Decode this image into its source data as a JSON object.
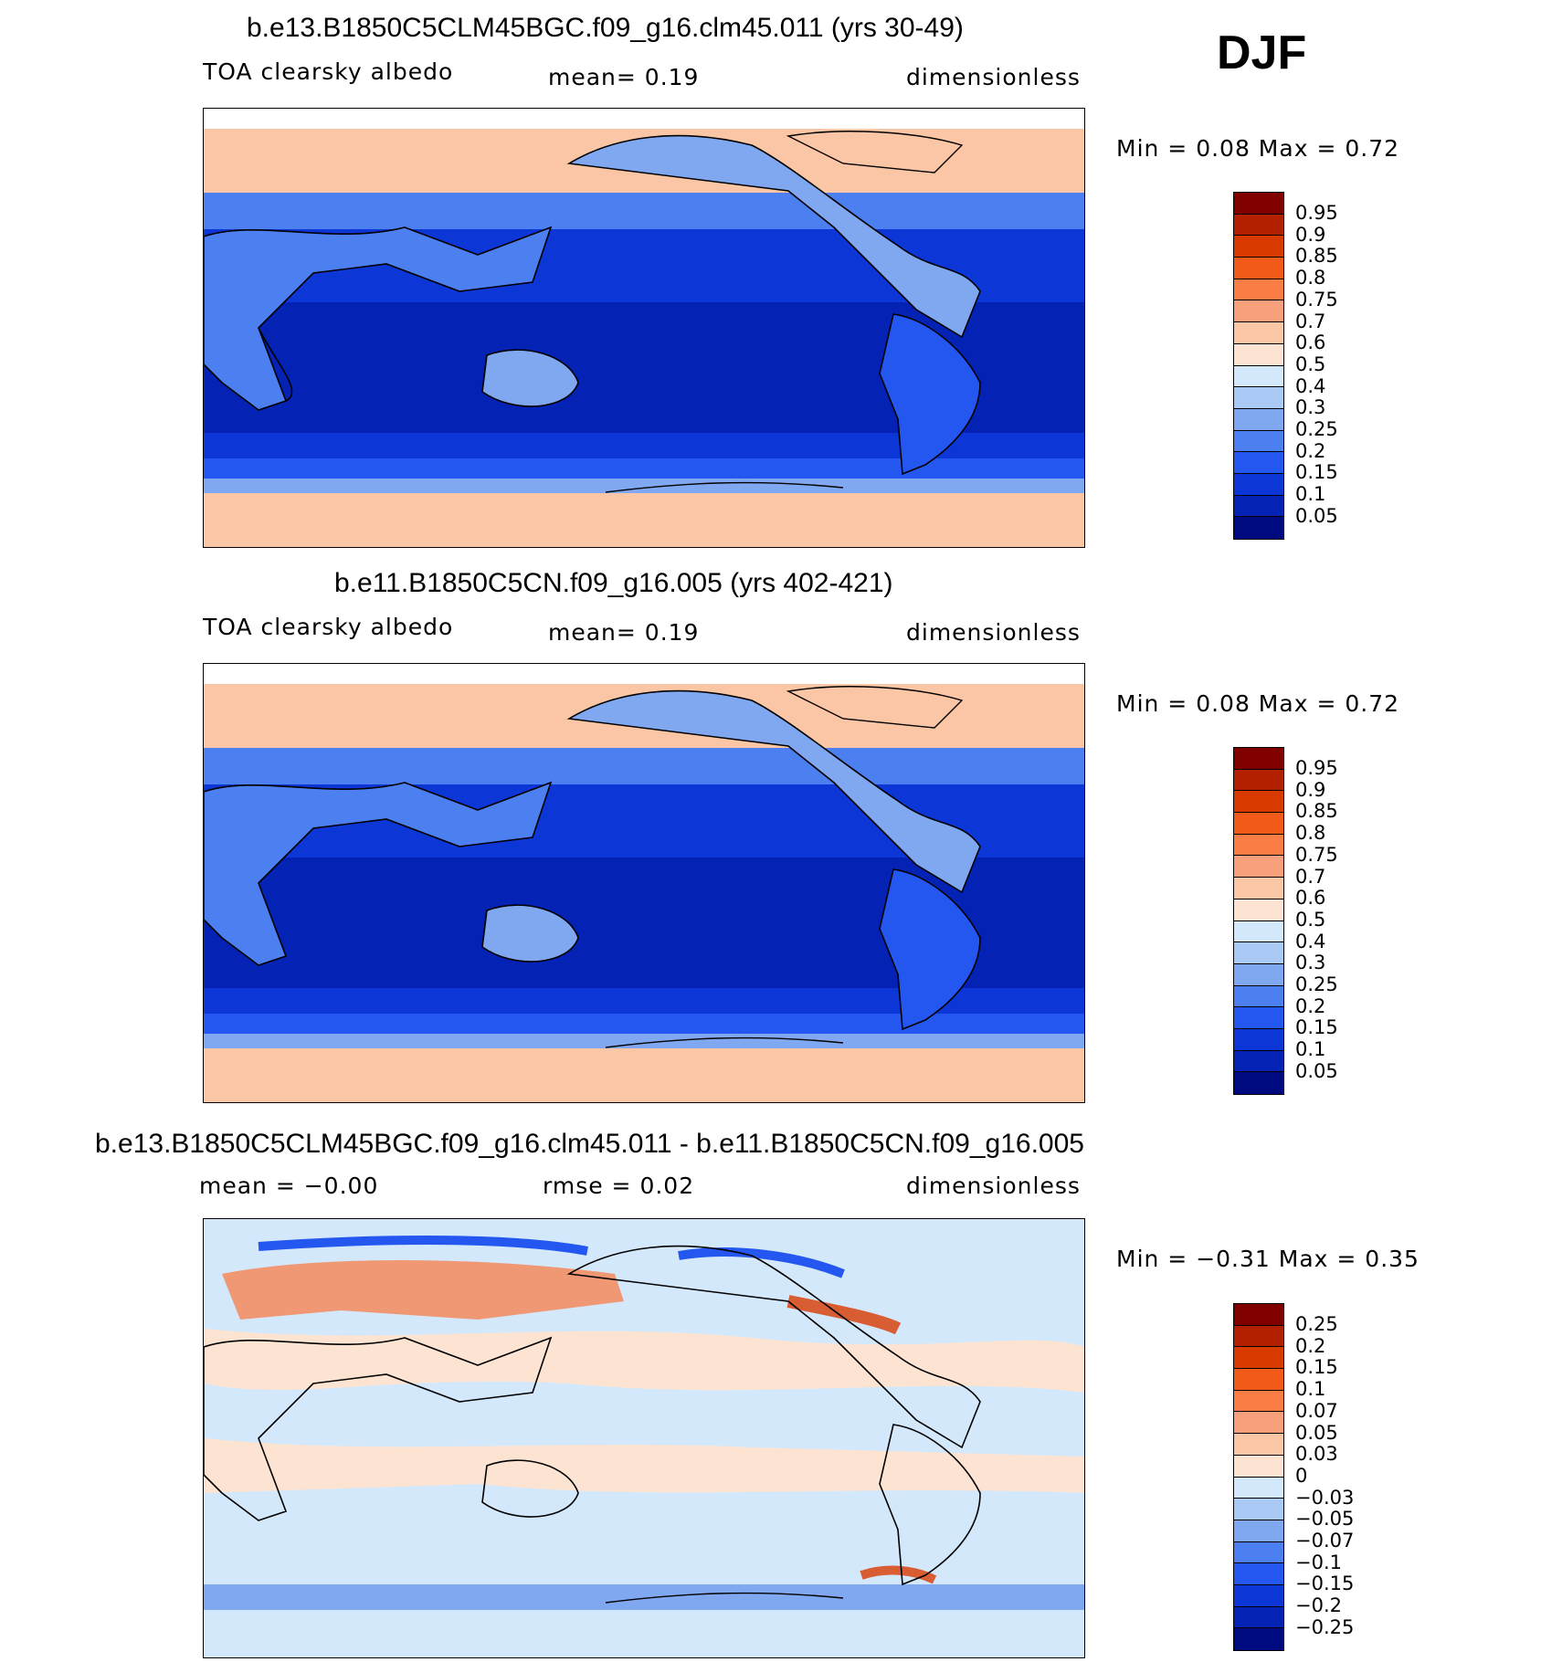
{
  "season_label": "DJF",
  "panels": [
    {
      "title": "b.e13.B1850C5CLM45BGC.f09_g16.clm45.011 (yrs 30-49)",
      "variable": "TOA clearsky albedo",
      "stat_text": "mean=    0.19",
      "units": "dimensionless",
      "minmax": "Min =    0.08  Max =     0.72",
      "colorbar": {
        "labels": [
          "0.95",
          "0.9",
          "0.85",
          "0.8",
          "0.75",
          "0.7",
          "0.6",
          "0.5",
          "0.4",
          "0.3",
          "0.25",
          "0.2",
          "0.15",
          "0.1",
          "0.05"
        ],
        "colors": [
          "#800000",
          "#b22000",
          "#d93a00",
          "#f25a1a",
          "#fa7d45",
          "#f8a07c",
          "#fbc6a6",
          "#fde4d2",
          "#d4e8fb",
          "#aac9f5",
          "#80a8f0",
          "#4c7ff0",
          "#2457f0",
          "#0c37d6",
          "#0423b4",
          "#000a80"
        ]
      }
    },
    {
      "title": "b.e11.B1850C5CN.f09_g16.005 (yrs 402-421)",
      "variable": "TOA clearsky albedo",
      "stat_text": "mean=    0.19",
      "units": "dimensionless",
      "minmax": "Min =    0.08  Max =     0.72",
      "colorbar": {
        "labels": [
          "0.95",
          "0.9",
          "0.85",
          "0.8",
          "0.75",
          "0.7",
          "0.6",
          "0.5",
          "0.4",
          "0.3",
          "0.25",
          "0.2",
          "0.15",
          "0.1",
          "0.05"
        ],
        "colors": [
          "#800000",
          "#b22000",
          "#d93a00",
          "#f25a1a",
          "#fa7d45",
          "#f8a07c",
          "#fbc6a6",
          "#fde4d2",
          "#d4e8fb",
          "#aac9f5",
          "#80a8f0",
          "#4c7ff0",
          "#2457f0",
          "#0c37d6",
          "#0423b4",
          "#000a80"
        ]
      }
    },
    {
      "title": "b.e13.B1850C5CLM45BGC.f09_g16.clm45.011 - b.e11.B1850C5CN.f09_g16.005",
      "variable": "",
      "stat_text": "mean =   −0.00",
      "stat2_text": "rmse =    0.02",
      "units": "dimensionless",
      "minmax": "Min =  −0.31  Max =    0.35",
      "colorbar": {
        "labels": [
          "0.25",
          "0.2",
          "0.15",
          "0.1",
          "0.07",
          "0.05",
          "0.03",
          "0",
          "−0.03",
          "−0.05",
          "−0.07",
          "−0.1",
          "−0.15",
          "−0.2",
          "−0.25"
        ],
        "colors": [
          "#800000",
          "#b22000",
          "#d93a00",
          "#f25a1a",
          "#fa7d45",
          "#f8a07c",
          "#fbc6a6",
          "#fde4d2",
          "#d4e8fb",
          "#aac9f5",
          "#80a8f0",
          "#4c7ff0",
          "#2457f0",
          "#0c37d6",
          "#0423b4",
          "#000a80"
        ]
      }
    }
  ]
}
